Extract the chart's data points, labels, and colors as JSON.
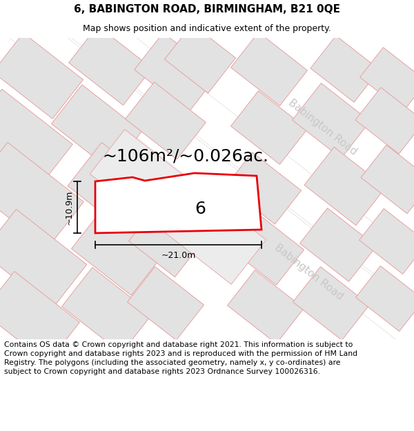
{
  "title_line1": "6, BABINGTON ROAD, BIRMINGHAM, B21 0QE",
  "title_line2": "Map shows position and indicative extent of the property.",
  "area_text": "~106m²/~0.026ac.",
  "width_label": "~21.0m",
  "height_label": "~10.9m",
  "property_number": "6",
  "footer_text": "Contains OS data © Crown copyright and database right 2021. This information is subject to Crown copyright and database rights 2023 and is reproduced with the permission of HM Land Registry. The polygons (including the associated geometry, namely x, y co-ordinates) are subject to Crown copyright and database rights 2023 Ordnance Survey 100026316.",
  "map_bg": "#f0f0f0",
  "block_fill": "#e2e2e2",
  "road_fill": "#ffffff",
  "property_fill": "#ffffff",
  "red_line": "#e8000a",
  "pink_line": "#e8a0a0",
  "road_label_color": "#c8c8c8",
  "title_fontsize": 11,
  "subtitle_fontsize": 9,
  "area_fontsize": 18,
  "num_fontsize": 18,
  "dim_fontsize": 9,
  "footer_fontsize": 7.8,
  "road_label_fontsize": 11
}
